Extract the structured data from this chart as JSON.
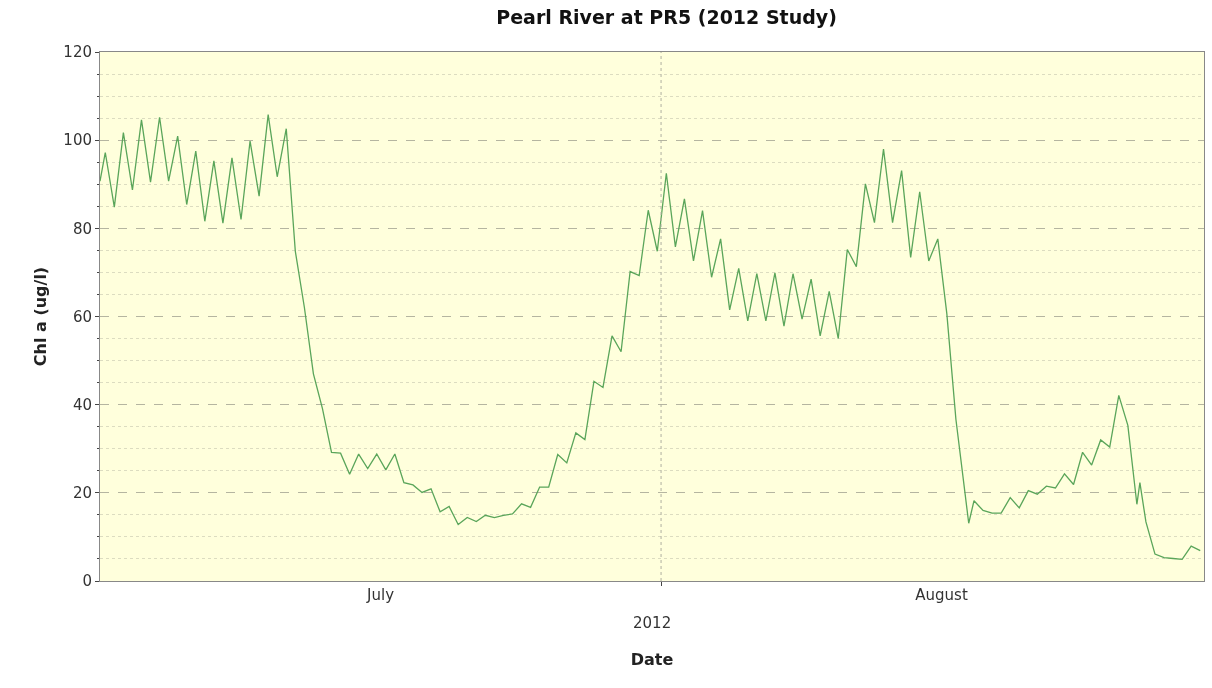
{
  "chart_data": {
    "type": "line",
    "title": "Pearl River at PR5 (2012 Study)",
    "xlabel": "Date",
    "ylabel": "Chl a (ug/l)",
    "annotations": [
      "2012"
    ],
    "x": [
      "2012-07-01T00:00",
      "2012-07-01T07:00",
      "2012-07-01T19:00",
      "2012-07-02T07:00",
      "2012-07-02T19:00",
      "2012-07-03T07:00",
      "2012-07-03T19:00",
      "2012-07-04T07:00",
      "2012-07-04T19:00",
      "2012-07-05T07:00",
      "2012-07-05T19:00",
      "2012-07-06T07:00",
      "2012-07-06T19:00",
      "2012-07-07T07:00",
      "2012-07-07T19:00",
      "2012-07-08T07:00",
      "2012-07-08T19:00",
      "2012-07-09T07:00",
      "2012-07-09T19:00",
      "2012-07-10T07:00",
      "2012-07-10T19:00",
      "2012-07-11T07:00",
      "2012-07-11T19:00",
      "2012-07-12T07:00",
      "2012-07-12T19:00",
      "2012-07-13T07:00",
      "2012-07-13T19:00",
      "2012-07-14T07:00",
      "2012-07-14T19:00",
      "2012-07-15T07:00",
      "2012-07-15T19:00",
      "2012-07-16T07:00",
      "2012-07-16T19:00",
      "2012-07-17T07:00",
      "2012-07-17T19:00",
      "2012-07-18T07:00",
      "2012-07-18T19:00",
      "2012-07-19T07:00",
      "2012-07-19T19:00",
      "2012-07-20T07:00",
      "2012-07-20T19:00",
      "2012-07-21T07:00",
      "2012-07-21T19:00",
      "2012-07-22T07:00",
      "2012-07-22T19:00",
      "2012-07-23T07:00",
      "2012-07-23T19:00",
      "2012-07-24T07:00",
      "2012-07-24T19:00",
      "2012-07-25T07:00",
      "2012-07-25T19:00",
      "2012-07-26T07:00",
      "2012-07-26T19:00",
      "2012-07-27T07:00",
      "2012-07-27T19:00",
      "2012-07-28T07:00",
      "2012-07-28T19:00",
      "2012-07-29T07:00",
      "2012-07-29T19:00",
      "2012-07-30T07:00",
      "2012-07-30T19:00",
      "2012-07-31T07:00",
      "2012-07-31T19:00",
      "2012-08-01T07:00",
      "2012-08-01T19:00",
      "2012-08-02T07:00",
      "2012-08-02T19:00",
      "2012-08-03T07:00",
      "2012-08-03T19:00",
      "2012-08-04T07:00",
      "2012-08-04T19:00",
      "2012-08-05T07:00",
      "2012-08-05T19:00",
      "2012-08-06T07:00",
      "2012-08-06T19:00",
      "2012-08-07T07:00",
      "2012-08-07T19:00",
      "2012-08-08T07:00",
      "2012-08-08T19:00",
      "2012-08-09T07:00",
      "2012-08-09T19:00",
      "2012-08-10T07:00",
      "2012-08-10T19:00",
      "2012-08-11T07:00",
      "2012-08-11T19:00",
      "2012-08-12T07:00",
      "2012-08-12T19:00",
      "2012-08-13T07:00",
      "2012-08-13T19:00",
      "2012-08-14T07:00",
      "2012-08-14T19:00",
      "2012-08-15T07:00",
      "2012-08-15T19:00",
      "2012-08-16T07:00",
      "2012-08-16T19:00",
      "2012-08-17T07:00",
      "2012-08-18T00:00",
      "2012-08-18T07:00",
      "2012-08-18T19:00",
      "2012-08-19T07:00",
      "2012-08-19T19:00",
      "2012-08-20T07:00",
      "2012-08-20T19:00",
      "2012-08-21T07:00",
      "2012-08-21T19:00",
      "2012-08-22T07:00",
      "2012-08-22T19:00",
      "2012-08-23T07:00",
      "2012-08-23T19:00",
      "2012-08-24T07:00",
      "2012-08-24T19:00",
      "2012-08-25T07:00",
      "2012-08-25T19:00",
      "2012-08-26T07:00",
      "2012-08-26T19:00",
      "2012-08-27T07:00",
      "2012-08-27T11:00",
      "2012-08-27T19:00",
      "2012-08-28T07:00",
      "2012-08-28T19:00",
      "2012-08-29T07:00",
      "2012-08-29T19:00",
      "2012-08-30T07:00",
      "2012-08-30T19:00"
    ],
    "series": [
      {
        "color": "#5aa55a",
        "values": [
          90.7,
          97.2,
          84.8,
          101.7,
          88.7,
          104.6,
          90.5,
          105.2,
          90.7,
          100.9,
          85.4,
          97.5,
          81.6,
          95.3,
          81.2,
          96.0,
          82.0,
          99.8,
          87.3,
          105.8,
          91.7,
          102.6,
          74.8,
          62.1,
          47.0,
          39.1,
          29.2,
          29.0,
          24.2,
          28.8,
          25.5,
          28.8,
          25.2,
          28.8,
          22.3,
          21.8,
          20.1,
          20.9,
          15.7,
          16.9,
          12.8,
          14.4,
          13.5,
          14.9,
          14.4,
          14.9,
          15.2,
          17.5,
          16.7,
          21.3,
          21.3,
          28.7,
          26.8,
          33.6,
          32.1,
          45.3,
          43.9,
          55.6,
          52.0,
          70.2,
          69.3,
          84.1,
          74.8,
          92.5,
          75.8,
          86.7,
          72.6,
          84.0,
          68.9,
          77.6,
          61.5,
          70.9,
          59.0,
          69.7,
          59.0,
          69.9,
          57.8,
          69.7,
          59.4,
          68.5,
          55.6,
          65.7,
          55.0,
          75.2,
          71.3,
          90.1,
          81.3,
          98.0,
          81.3,
          93.1,
          73.4,
          88.3,
          72.6,
          77.6,
          60.6,
          36.7,
          13.1,
          18.2,
          16.0,
          15.4,
          15.4,
          18.9,
          16.6,
          20.5,
          19.7,
          21.5,
          21.1,
          24.3,
          21.9,
          29.2,
          26.3,
          32.0,
          30.4,
          42.1,
          35.3,
          17.4,
          22.3,
          13.4,
          6.1,
          5.3,
          5.1,
          4.9,
          7.9,
          6.9
        ]
      }
    ],
    "xlim": [
      "2012-07-01T00:00",
      "2012-08-31T00:00"
    ],
    "xticks": [
      {
        "value": "2012-07-16T12:00",
        "label": "July"
      },
      {
        "value": "2012-08-01T00:00",
        "label": null
      },
      {
        "value": "2012-08-16T12:00",
        "label": "August"
      }
    ],
    "ylim": [
      0,
      120
    ],
    "yticks": [
      0,
      {
        "value": 5,
        "label": null
      },
      {
        "value": 10,
        "label": null
      },
      {
        "value": 15,
        "label": null
      },
      20,
      {
        "value": 25,
        "label": null
      },
      {
        "value": 30,
        "label": null
      },
      {
        "value": 35,
        "label": null
      },
      40,
      {
        "value": 45,
        "label": null
      },
      {
        "value": 50,
        "label": null
      },
      {
        "value": 55,
        "label": null
      },
      60,
      {
        "value": 65,
        "label": null
      },
      {
        "value": 70,
        "label": null
      },
      {
        "value": 75,
        "label": null
      },
      80,
      {
        "value": 85,
        "label": null
      },
      {
        "value": 90,
        "label": null
      },
      {
        "value": 95,
        "label": null
      },
      100,
      {
        "value": 105,
        "label": null
      },
      {
        "value": 110,
        "label": null
      },
      {
        "value": 115,
        "label": null
      },
      120
    ],
    "ref_lines": [
      {
        "axis": "x",
        "value": "2012-08-01T00:00",
        "color": "#b0b0a0",
        "line_style": "dotted"
      }
    ],
    "grid": "y",
    "marker": "none",
    "line_style": "solid"
  }
}
